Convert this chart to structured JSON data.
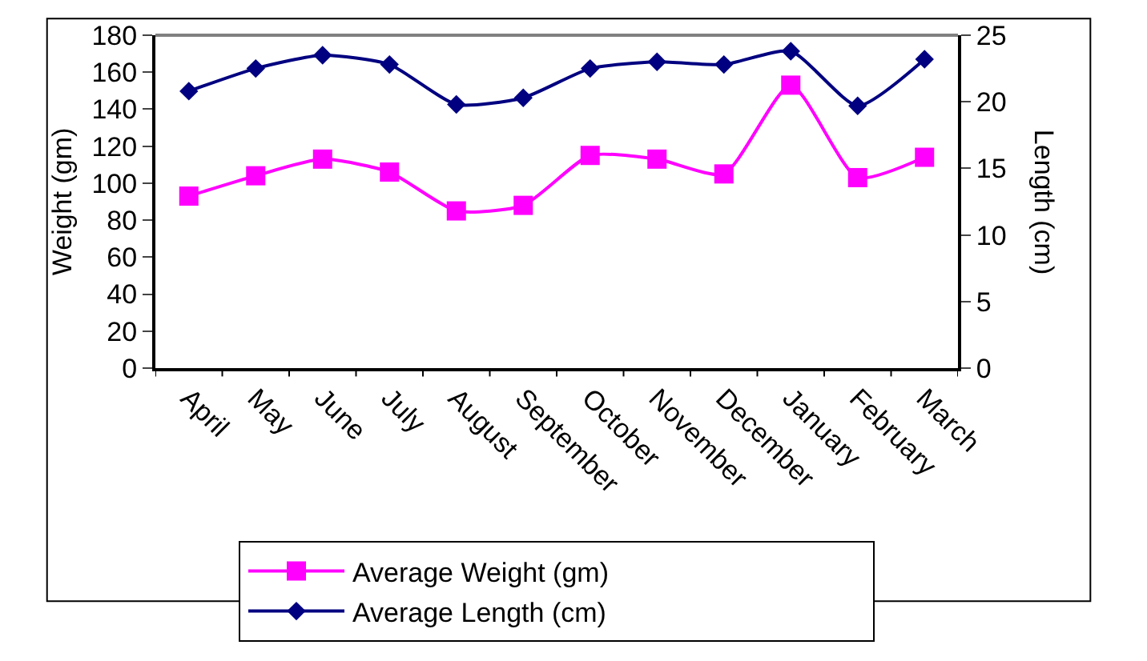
{
  "chart_data": {
    "type": "line",
    "xlabel": null,
    "ylabel": "Weight (gm)",
    "y2label": "Length (cm)",
    "categories": [
      "April",
      "May",
      "June",
      "July",
      "August",
      "September",
      "October",
      "November",
      "December",
      "January",
      "February",
      "March"
    ],
    "series": [
      {
        "name": "Average Weight (gm)",
        "color": "#ff00ff",
        "marker": "square",
        "values": [
          93,
          104,
          113,
          106,
          85,
          88,
          115,
          113,
          105,
          153,
          103,
          114
        ]
      },
      {
        "name": "Average Length (cm)",
        "color": "#000080",
        "marker": "diamond",
        "axis": "y2",
        "values": [
          20.8,
          22.5,
          23.5,
          22.8,
          19.8,
          20.3,
          22.5,
          23.0,
          22.8,
          23.8,
          19.7,
          23.2
        ]
      }
    ],
    "ylim": [
      0,
      180
    ],
    "yticks": [
      0,
      20,
      40,
      60,
      80,
      100,
      120,
      140,
      160,
      180
    ],
    "y2lim": [
      0,
      25
    ],
    "y2ticks": [
      0,
      5,
      10,
      15,
      20,
      25
    ],
    "grid": false,
    "legend": "bottom"
  }
}
